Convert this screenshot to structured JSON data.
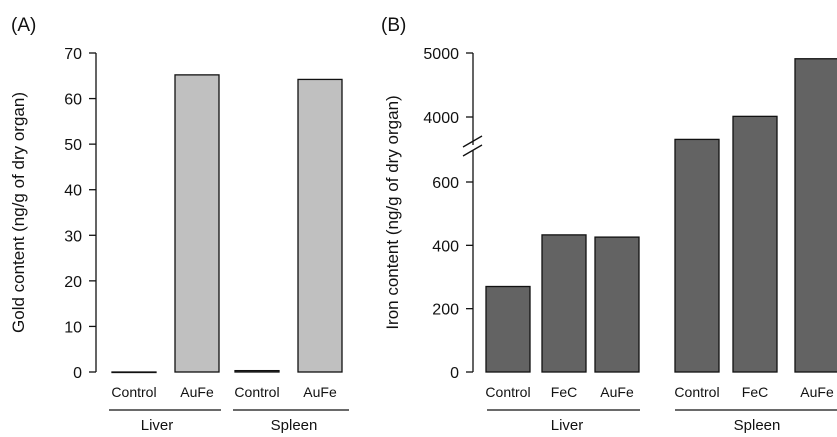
{
  "chart_data": [
    {
      "panel": "(A)",
      "type": "bar",
      "ylabel": "Gold content (ng/g of dry organ)",
      "ylim": [
        0,
        70
      ],
      "yticks": [
        0,
        10,
        20,
        30,
        40,
        50,
        60,
        70
      ],
      "bar_color": "#c0c0c0",
      "bars": [
        {
          "category": "Control",
          "group": "Liver",
          "value": 0
        },
        {
          "category": "AuFe",
          "group": "Liver",
          "value": 65.2
        },
        {
          "category": "Control",
          "group": "Spleen",
          "value": 0.3
        },
        {
          "category": "AuFe",
          "group": "Spleen",
          "value": 64.2
        }
      ],
      "groups": [
        "Liver",
        "Spleen"
      ]
    },
    {
      "panel": "(B)",
      "type": "bar",
      "ylabel": "Iron content (ng/g of dry organ)",
      "y_axis_break": true,
      "lower_ylim": [
        0,
        600
      ],
      "lower_yticks": [
        0,
        200,
        400,
        600
      ],
      "upper_yticks": [
        4000,
        5000
      ],
      "bar_color": "#636363",
      "bars": [
        {
          "category": "Control",
          "group": "Liver",
          "value": 270
        },
        {
          "category": "FeC",
          "group": "Liver",
          "value": 433
        },
        {
          "category": "AuFe",
          "group": "Liver",
          "value": 426
        },
        {
          "category": "Control",
          "group": "Spleen",
          "value": 3650
        },
        {
          "category": "FeC",
          "group": "Spleen",
          "value": 4010
        },
        {
          "category": "AuFe",
          "group": "Spleen",
          "value": 4910
        }
      ],
      "groups": [
        "Liver",
        "Spleen"
      ]
    }
  ]
}
